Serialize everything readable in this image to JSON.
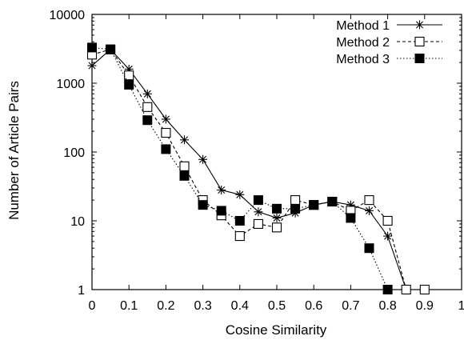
{
  "chart_data": {
    "type": "line",
    "title": "",
    "xlabel": "Cosine Similarity",
    "ylabel": "Number of Article Pairs",
    "xlim": [
      0,
      1
    ],
    "ylim": [
      1,
      10000
    ],
    "yscale": "log",
    "grid": false,
    "legend_position": "top-right",
    "x_ticks": [
      0,
      0.1,
      0.2,
      0.3,
      0.4,
      0.5,
      0.6,
      0.7,
      0.8,
      0.9,
      1
    ],
    "x_tick_labels": [
      "0",
      "0.1",
      "0.2",
      "0.3",
      "0.4",
      "0.5",
      "0.6",
      "0.7",
      "0.8",
      "0.9",
      "1"
    ],
    "y_ticks": [
      1,
      10,
      100,
      1000,
      10000
    ],
    "y_tick_labels": [
      "1",
      "10",
      "100",
      "1000",
      "10000"
    ],
    "series": [
      {
        "name": "Method 1",
        "marker": "asterisk",
        "line_style": "solid",
        "points": [
          [
            0,
            1800
          ],
          [
            0.05,
            3100
          ],
          [
            0.1,
            1600
          ],
          [
            0.15,
            700
          ],
          [
            0.2,
            300
          ],
          [
            0.25,
            150
          ],
          [
            0.3,
            78
          ],
          [
            0.35,
            28
          ],
          [
            0.4,
            24
          ],
          [
            0.45,
            13.5
          ],
          [
            0.5,
            11
          ],
          [
            0.55,
            13
          ],
          [
            0.6,
            17
          ],
          [
            0.65,
            19
          ],
          [
            0.7,
            17
          ],
          [
            0.75,
            14
          ],
          [
            0.8,
            6
          ],
          [
            0.85,
            1
          ]
        ]
      },
      {
        "name": "Method 2",
        "marker": "open-square",
        "line_style": "dashed",
        "points": [
          [
            0,
            2600
          ],
          [
            0.05,
            3100
          ],
          [
            0.1,
            1300
          ],
          [
            0.15,
            450
          ],
          [
            0.2,
            190
          ],
          [
            0.25,
            62
          ],
          [
            0.3,
            20
          ],
          [
            0.35,
            12
          ],
          [
            0.4,
            6
          ],
          [
            0.45,
            9
          ],
          [
            0.5,
            8
          ],
          [
            0.55,
            20
          ],
          [
            0.6,
            17
          ],
          [
            0.65,
            19
          ],
          [
            0.7,
            14
          ],
          [
            0.75,
            20
          ],
          [
            0.8,
            10
          ],
          [
            0.85,
            1
          ],
          [
            0.9,
            1
          ]
        ]
      },
      {
        "name": "Method 3",
        "marker": "filled-square",
        "line_style": "dotted",
        "points": [
          [
            0,
            3300
          ],
          [
            0.05,
            3100
          ],
          [
            0.1,
            950
          ],
          [
            0.15,
            290
          ],
          [
            0.2,
            110
          ],
          [
            0.25,
            45
          ],
          [
            0.3,
            17
          ],
          [
            0.35,
            14
          ],
          [
            0.4,
            10
          ],
          [
            0.45,
            20
          ],
          [
            0.5,
            15
          ],
          [
            0.55,
            15
          ],
          [
            0.6,
            17
          ],
          [
            0.65,
            19
          ],
          [
            0.7,
            11
          ],
          [
            0.75,
            4
          ],
          [
            0.8,
            1
          ]
        ]
      }
    ]
  }
}
